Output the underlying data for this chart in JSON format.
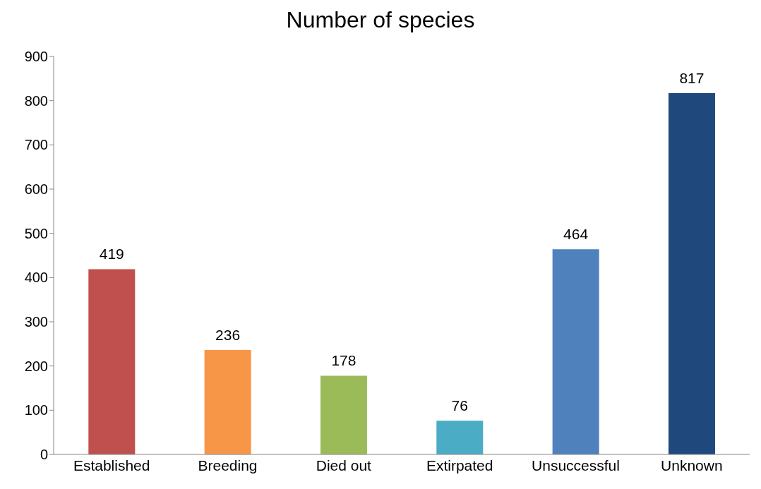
{
  "chart_data": {
    "type": "bar",
    "title": "Number of species",
    "categories": [
      "Established",
      "Breeding",
      "Died out",
      "Extirpated",
      "Unsuccessful",
      "Unknown"
    ],
    "values": [
      419,
      236,
      178,
      76,
      464,
      817
    ],
    "colors": [
      "#c0504d",
      "#f79646",
      "#9bbb59",
      "#4bacc6",
      "#4f81bd",
      "#1f497d"
    ],
    "ylim": [
      0,
      900
    ],
    "yticks": [
      0,
      100,
      200,
      300,
      400,
      500,
      600,
      700,
      800,
      900
    ],
    "grid": false,
    "data_labels": true
  }
}
